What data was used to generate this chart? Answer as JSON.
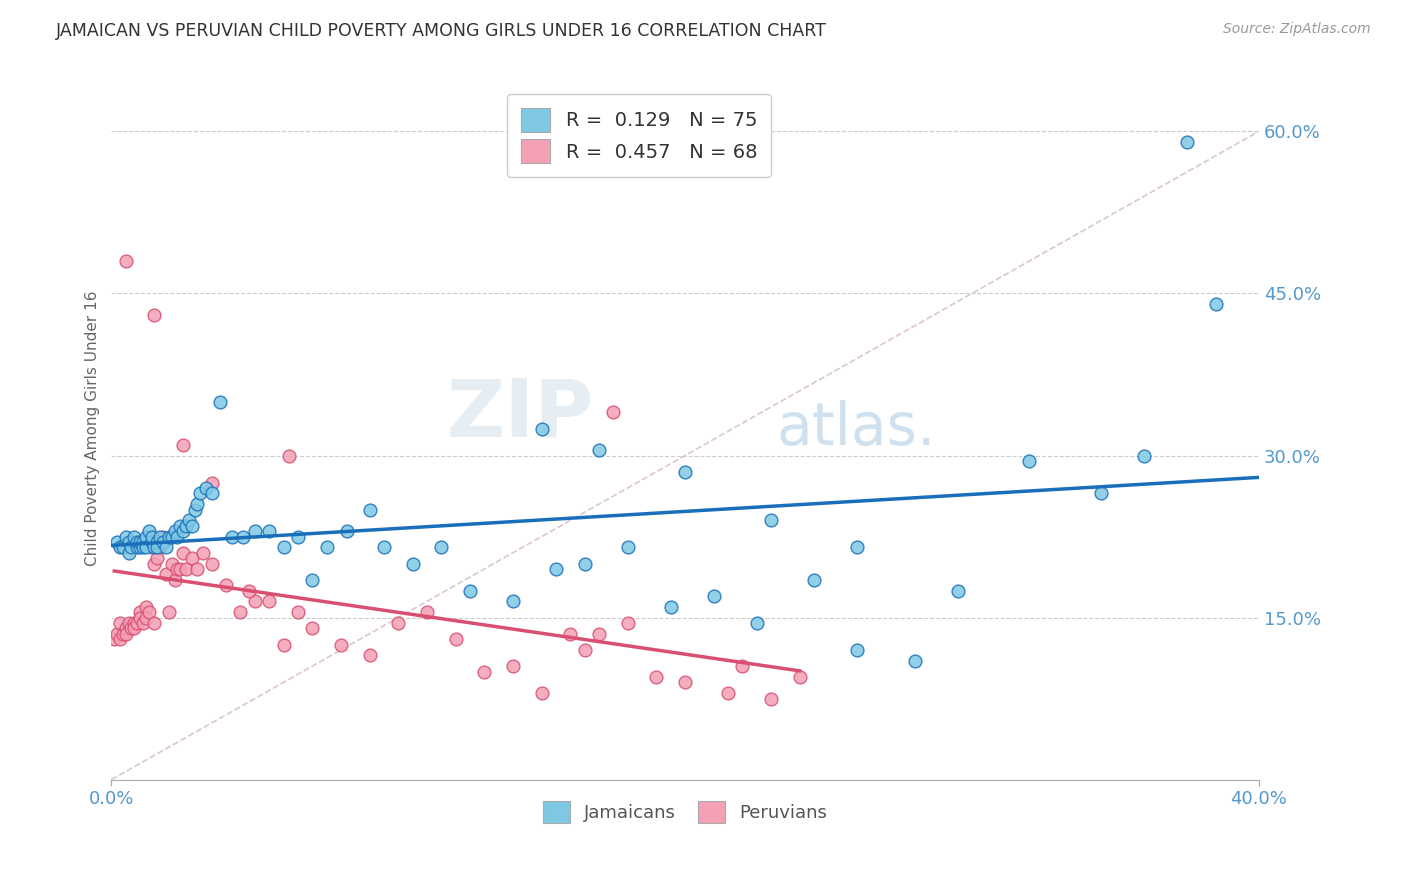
{
  "title": "JAMAICAN VS PERUVIAN CHILD POVERTY AMONG GIRLS UNDER 16 CORRELATION CHART",
  "source": "Source: ZipAtlas.com",
  "ylabel": "Child Poverty Among Girls Under 16",
  "xlim": [
    0.0,
    0.4
  ],
  "ylim": [
    0.0,
    0.65
  ],
  "x_ticks": [
    0.0,
    0.4
  ],
  "x_tick_labels": [
    "0.0%",
    "40.0%"
  ],
  "y_ticks": [
    0.15,
    0.3,
    0.45,
    0.6
  ],
  "y_tick_labels": [
    "15.0%",
    "30.0%",
    "45.0%",
    "60.0%"
  ],
  "jamaicans_R": 0.129,
  "jamaicans_N": 75,
  "peruvians_R": 0.457,
  "peruvians_N": 68,
  "color_jamaicans": "#7ec8e3",
  "color_peruvians": "#f4a0b5",
  "color_line_jamaicans": "#1a6fbb",
  "color_line_peruvians": "#d94f70",
  "color_diag": "#d4b8c0",
  "watermark_zip": "ZIP",
  "watermark_atlas": "atlas.",
  "background_color": "#ffffff",
  "jamaicans_x": [
    0.002,
    0.003,
    0.004,
    0.005,
    0.006,
    0.006,
    0.007,
    0.008,
    0.009,
    0.009,
    0.01,
    0.01,
    0.011,
    0.011,
    0.012,
    0.012,
    0.013,
    0.014,
    0.014,
    0.015,
    0.016,
    0.016,
    0.017,
    0.018,
    0.019,
    0.02,
    0.021,
    0.022,
    0.023,
    0.024,
    0.025,
    0.026,
    0.027,
    0.028,
    0.029,
    0.03,
    0.031,
    0.033,
    0.035,
    0.038,
    0.042,
    0.046,
    0.05,
    0.055,
    0.06,
    0.065,
    0.07,
    0.075,
    0.082,
    0.09,
    0.095,
    0.105,
    0.115,
    0.125,
    0.14,
    0.155,
    0.165,
    0.18,
    0.195,
    0.21,
    0.225,
    0.245,
    0.26,
    0.28,
    0.295,
    0.32,
    0.345,
    0.36,
    0.375,
    0.385,
    0.15,
    0.17,
    0.2,
    0.23,
    0.26
  ],
  "jamaicans_y": [
    0.22,
    0.215,
    0.215,
    0.225,
    0.22,
    0.21,
    0.215,
    0.225,
    0.215,
    0.22,
    0.215,
    0.22,
    0.22,
    0.215,
    0.225,
    0.215,
    0.23,
    0.22,
    0.225,
    0.215,
    0.22,
    0.215,
    0.225,
    0.22,
    0.215,
    0.225,
    0.225,
    0.23,
    0.225,
    0.235,
    0.23,
    0.235,
    0.24,
    0.235,
    0.25,
    0.255,
    0.265,
    0.27,
    0.265,
    0.35,
    0.225,
    0.225,
    0.23,
    0.23,
    0.215,
    0.225,
    0.185,
    0.215,
    0.23,
    0.25,
    0.215,
    0.2,
    0.215,
    0.175,
    0.165,
    0.195,
    0.2,
    0.215,
    0.16,
    0.17,
    0.145,
    0.185,
    0.12,
    0.11,
    0.175,
    0.295,
    0.265,
    0.3,
    0.59,
    0.44,
    0.325,
    0.305,
    0.285,
    0.24,
    0.215
  ],
  "peruvians_x": [
    0.001,
    0.002,
    0.003,
    0.003,
    0.004,
    0.005,
    0.005,
    0.006,
    0.007,
    0.008,
    0.008,
    0.009,
    0.01,
    0.01,
    0.011,
    0.012,
    0.012,
    0.013,
    0.014,
    0.015,
    0.015,
    0.016,
    0.017,
    0.018,
    0.019,
    0.02,
    0.021,
    0.022,
    0.023,
    0.024,
    0.025,
    0.026,
    0.028,
    0.03,
    0.032,
    0.035,
    0.04,
    0.045,
    0.05,
    0.06,
    0.07,
    0.08,
    0.09,
    0.1,
    0.11,
    0.12,
    0.13,
    0.14,
    0.15,
    0.16,
    0.165,
    0.17,
    0.175,
    0.18,
    0.19,
    0.2,
    0.215,
    0.22,
    0.23,
    0.24,
    0.055,
    0.065,
    0.005,
    0.015,
    0.025,
    0.035,
    0.048,
    0.062
  ],
  "peruvians_y": [
    0.13,
    0.135,
    0.13,
    0.145,
    0.135,
    0.14,
    0.135,
    0.145,
    0.14,
    0.145,
    0.14,
    0.145,
    0.155,
    0.15,
    0.145,
    0.16,
    0.15,
    0.155,
    0.215,
    0.145,
    0.2,
    0.205,
    0.215,
    0.225,
    0.19,
    0.155,
    0.2,
    0.185,
    0.195,
    0.195,
    0.21,
    0.195,
    0.205,
    0.195,
    0.21,
    0.2,
    0.18,
    0.155,
    0.165,
    0.125,
    0.14,
    0.125,
    0.115,
    0.145,
    0.155,
    0.13,
    0.1,
    0.105,
    0.08,
    0.135,
    0.12,
    0.135,
    0.34,
    0.145,
    0.095,
    0.09,
    0.08,
    0.105,
    0.075,
    0.095,
    0.165,
    0.155,
    0.48,
    0.43,
    0.31,
    0.275,
    0.175,
    0.3
  ]
}
